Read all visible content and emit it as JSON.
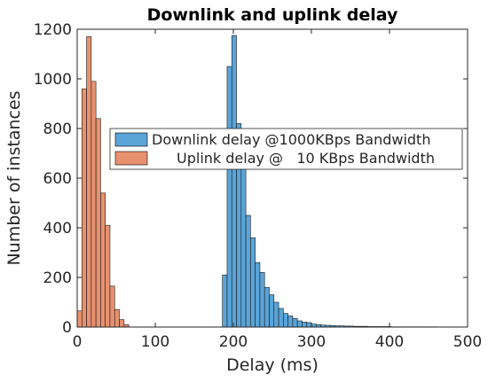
{
  "chart_data": {
    "type": "bar",
    "title": "Downlink and uplink delay",
    "xlabel": "Delay (ms)",
    "ylabel": "Number of instances",
    "xlim": [
      0,
      500
    ],
    "ylim": [
      0,
      1200
    ],
    "xticks": [
      0,
      100,
      200,
      300,
      400,
      500
    ],
    "yticks": [
      0,
      200,
      400,
      600,
      800,
      1000,
      1200
    ],
    "bin_width": 6,
    "grid": false,
    "legend_placement": "center",
    "series": [
      {
        "name": "Downlink delay @1000KBps Bandwidth",
        "color": "#5aa4d8",
        "bin_start": 186,
        "values": [
          210,
          1050,
          1175,
          820,
          640,
          450,
          360,
          260,
          220,
          160,
          130,
          100,
          75,
          55,
          45,
          35,
          25,
          20,
          18,
          12,
          10,
          8,
          7,
          6,
          5,
          5,
          4,
          4,
          3,
          3,
          3,
          2,
          2,
          2,
          2,
          2,
          1,
          1,
          1,
          1,
          1,
          1,
          1,
          1,
          1,
          1
        ]
      },
      {
        "name": "Uplink delay @   10 KBps Bandwidth",
        "color": "#e8916e",
        "bin_start": 0,
        "values": [
          65,
          960,
          1170,
          990,
          840,
          540,
          410,
          165,
          70,
          30,
          10
        ]
      }
    ]
  }
}
